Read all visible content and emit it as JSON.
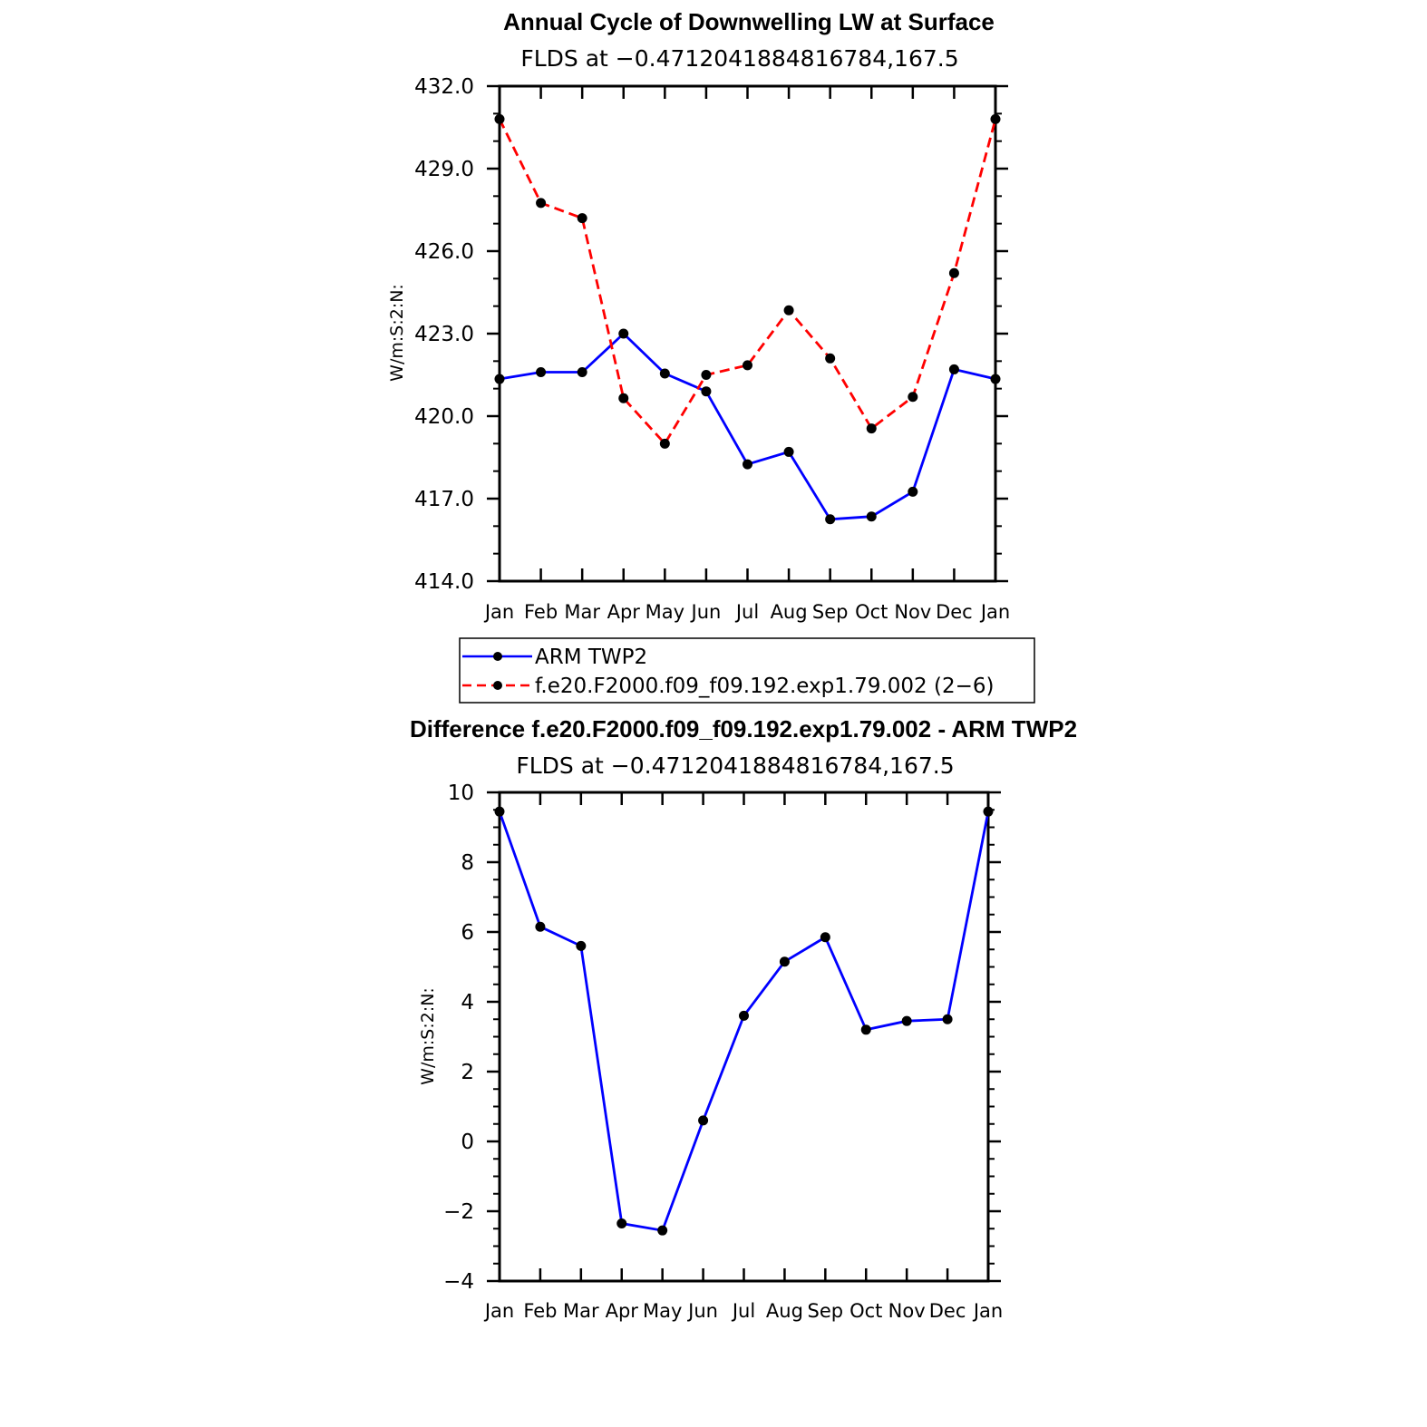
{
  "chart_data": [
    {
      "type": "line",
      "title": "Annual Cycle of Downwelling LW at Surface",
      "subtitle": "FLDS at −0.4712041884816784,167.5",
      "ylabel": "W/m:S:2:N:",
      "xlabel": "",
      "categories": [
        "Jan",
        "Feb",
        "Mar",
        "Apr",
        "May",
        "Jun",
        "Jul",
        "Aug",
        "Sep",
        "Oct",
        "Nov",
        "Dec",
        "Jan"
      ],
      "ylim": [
        414.0,
        432.0
      ],
      "yticks": [
        414.0,
        417.0,
        420.0,
        423.0,
        426.0,
        429.0,
        432.0
      ],
      "ytick_labels": [
        "414.0",
        "417.0",
        "420.0",
        "423.0",
        "426.0",
        "429.0",
        "432.0"
      ],
      "grid": false,
      "legend_position": "bottom",
      "series": [
        {
          "name": "ARM TWP2",
          "color": "#0000ff",
          "style": "solid",
          "values": [
            421.35,
            421.6,
            421.6,
            423.0,
            421.55,
            420.9,
            418.25,
            418.7,
            416.25,
            416.35,
            417.25,
            421.7,
            421.35
          ]
        },
        {
          "name": "f.e20.F2000.f09_f09.192.exp1.79.002 (2−6)",
          "color": "#ff0000",
          "style": "dashed",
          "values": [
            430.8,
            427.75,
            427.2,
            420.65,
            419.0,
            421.5,
            421.85,
            423.85,
            422.1,
            419.55,
            420.7,
            425.2,
            430.8
          ]
        }
      ]
    },
    {
      "type": "line",
      "title": "Difference f.e20.F2000.f09_f09.192.exp1.79.002 - ARM TWP2",
      "subtitle": "FLDS at −0.4712041884816784,167.5",
      "ylabel": "W/m:S:2:N:",
      "xlabel": "",
      "categories": [
        "Jan",
        "Feb",
        "Mar",
        "Apr",
        "May",
        "Jun",
        "Jul",
        "Aug",
        "Sep",
        "Oct",
        "Nov",
        "Dec",
        "Jan"
      ],
      "ylim": [
        -4,
        10
      ],
      "yticks": [
        -4,
        -2,
        0,
        2,
        4,
        6,
        8,
        10
      ],
      "ytick_labels": [
        "−4",
        "−2",
        "0",
        "2",
        "4",
        "6",
        "8",
        "10"
      ],
      "grid": false,
      "series": [
        {
          "name": "Difference",
          "color": "#0000ff",
          "style": "solid",
          "values": [
            9.45,
            6.15,
            5.6,
            -2.35,
            -2.55,
            0.6,
            3.6,
            5.15,
            5.85,
            3.2,
            3.45,
            3.5,
            9.45
          ]
        }
      ]
    }
  ]
}
